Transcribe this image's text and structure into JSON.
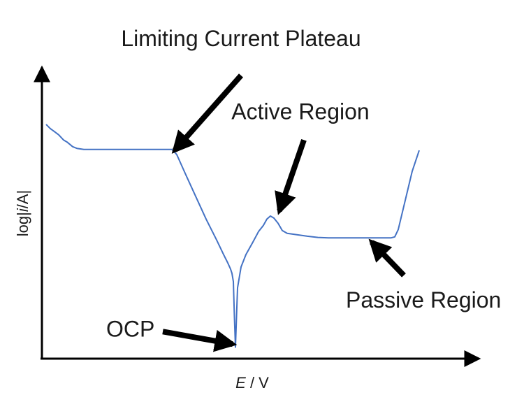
{
  "chart_data": {
    "type": "line",
    "title": "",
    "xlabel": "E / V",
    "ylabel": "log|i/A|",
    "xlabel_parts": {
      "symbol": "E",
      "unit": " / V"
    },
    "ylabel_parts": {
      "prefix": "log|",
      "symbol": "i",
      "unit": "/A|"
    },
    "grid": false,
    "legend": "none",
    "axis_ticks": false,
    "series": [
      {
        "color": "#4472C4",
        "points": [
          [
            0.6,
            7.25
          ],
          [
            1.2,
            7.05
          ],
          [
            1.8,
            6.9
          ],
          [
            2.4,
            6.75
          ],
          [
            3.1,
            6.5
          ],
          [
            3.6,
            6.4
          ],
          [
            4.4,
            6.18
          ],
          [
            5.0,
            6.1
          ],
          [
            6.0,
            6.05
          ],
          [
            8.0,
            6.05
          ],
          [
            10.0,
            6.05
          ],
          [
            13.0,
            6.05
          ],
          [
            15.5,
            6.05
          ],
          [
            17.0,
            6.05
          ],
          [
            18.6,
            6.05
          ],
          [
            19.3,
            5.8
          ],
          [
            20.5,
            4.9
          ],
          [
            22.0,
            3.8
          ],
          [
            23.5,
            2.7
          ],
          [
            25.0,
            1.7
          ],
          [
            26.0,
            1.0
          ],
          [
            26.6,
            0.6
          ],
          [
            27.0,
            0.3
          ],
          [
            27.2,
            0.1
          ],
          [
            27.4,
            -0.3
          ],
          [
            27.55,
            -2.0
          ],
          [
            27.7,
            -3.45
          ],
          [
            27.85,
            -2.0
          ],
          [
            28.0,
            -0.6
          ],
          [
            28.5,
            0.4
          ],
          [
            29.2,
            1.0
          ],
          [
            30.2,
            1.6
          ],
          [
            31.0,
            2.1
          ],
          [
            31.7,
            2.4
          ],
          [
            32.2,
            2.7
          ],
          [
            32.7,
            2.85
          ],
          [
            33.2,
            2.75
          ],
          [
            33.8,
            2.5
          ],
          [
            34.4,
            2.15
          ],
          [
            35.1,
            2.02
          ],
          [
            36.5,
            1.95
          ],
          [
            38.0,
            1.88
          ],
          [
            39.5,
            1.82
          ],
          [
            41.0,
            1.8
          ],
          [
            43.0,
            1.8
          ],
          [
            45.0,
            1.8
          ],
          [
            47.0,
            1.8
          ],
          [
            49.0,
            1.8
          ],
          [
            50.0,
            1.8
          ],
          [
            50.5,
            1.85
          ],
          [
            51.0,
            2.2
          ],
          [
            52.0,
            3.6
          ],
          [
            53.0,
            5.0
          ],
          [
            54.0,
            6.0
          ]
        ]
      }
    ],
    "xlim": [
      0,
      62
    ],
    "ylim": [
      -4,
      10
    ],
    "annotations": [
      {
        "text": "Limiting Current Plateau",
        "arrow_from": [
          28.5,
          9.6
        ],
        "arrow_to": [
          19.0,
          6.0
        ],
        "text_anchor": "middle",
        "text_at": [
          28.5,
          11.0
        ]
      },
      {
        "text": "Active Region",
        "arrow_from": [
          37.5,
          6.5
        ],
        "arrow_to": [
          34.0,
          3.1
        ],
        "text_anchor": "middle",
        "text_at": [
          37.0,
          7.5
        ]
      },
      {
        "text": "Passive Region",
        "arrow_from": [
          51.8,
          0.0
        ],
        "arrow_to": [
          47.2,
          1.6
        ],
        "text_anchor": "start",
        "text_at": [
          43.5,
          -1.55
        ]
      },
      {
        "text": "OCP",
        "arrow_from": [
          17.3,
          -2.7
        ],
        "arrow_to": [
          27.3,
          -3.3
        ],
        "text_anchor": "start",
        "text_at": [
          9.2,
          -2.95
        ]
      }
    ]
  }
}
